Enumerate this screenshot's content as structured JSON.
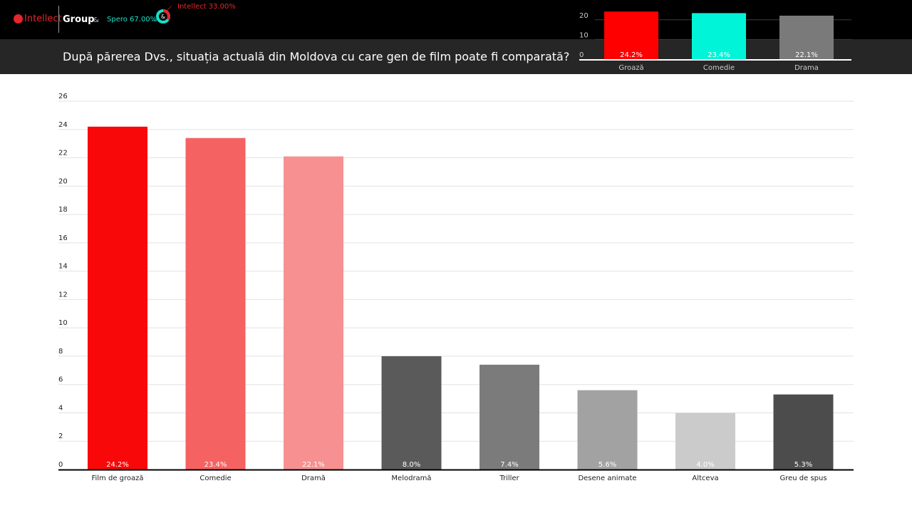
{
  "header": {
    "brand": "Intellect",
    "brand_suffix": "Group",
    "ampersand": "&",
    "spero_label": "Spero 67.00%",
    "intellect_label": "Intellect 33.00%",
    "donut_center": "&",
    "question": "După părerea Dvs., situația actuală din Moldova cu care gen de film poate fi comparată?",
    "colors": {
      "spero": "#19e0c8",
      "intellect": "#e5262b"
    }
  },
  "chart_data": [
    {
      "type": "bar",
      "categories": [
        "Groază",
        "Comedie",
        "Drama"
      ],
      "values": [
        24.2,
        23.4,
        22.1
      ],
      "labels": [
        "24.2%",
        "23.4%",
        "22.1%"
      ],
      "y_ticks": [
        "0",
        "10",
        "20"
      ],
      "ylim": [
        0,
        25
      ],
      "grid": true,
      "colors": [
        "#ff0000",
        "#00f5d8",
        "#7a7a7a"
      ]
    },
    {
      "type": "bar",
      "categories": [
        "Film de groază",
        "Comedie",
        "Dramă",
        "Melodramă",
        "Triller",
        "Desene animate",
        "Altceva",
        "Greu de spus"
      ],
      "values": [
        24.2,
        23.4,
        22.1,
        8.0,
        7.4,
        5.6,
        4.0,
        5.3
      ],
      "labels": [
        "24.2%",
        "23.4%",
        "22.1%",
        "8.0%",
        "7.4%",
        "5.6%",
        "4.0%",
        "5.3%"
      ],
      "y_ticks": [
        "0",
        "2",
        "4",
        "6",
        "8",
        "10",
        "12",
        "14",
        "16",
        "18",
        "20",
        "22",
        "24",
        "26"
      ],
      "ylim": [
        0,
        26
      ],
      "grid": true,
      "colors": [
        "#f80808",
        "#f56262",
        "#f79090",
        "#5a5a5a",
        "#7b7b7b",
        "#a2a2a2",
        "#cbcbcb",
        "#4c4c4c"
      ]
    }
  ]
}
